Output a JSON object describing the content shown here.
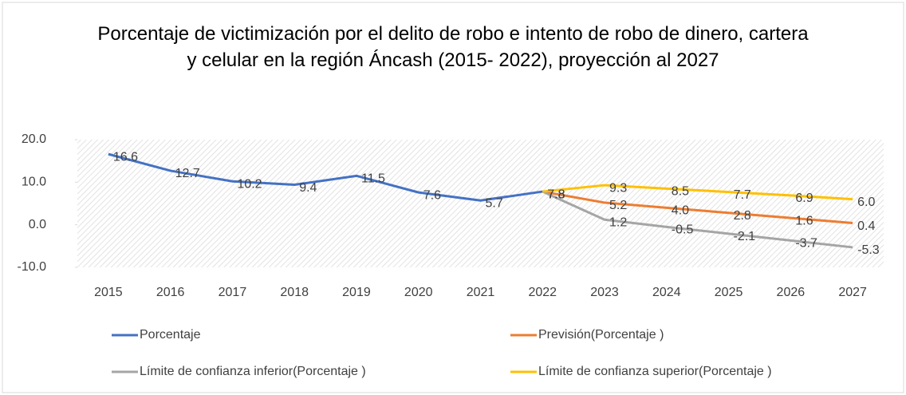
{
  "chart_data": {
    "type": "line",
    "title": "Porcentaje de victimización por el delito de robo e intento de robo de dinero, cartera y celular en la región Áncash (2015- 2022), proyección al 2027",
    "categories": [
      "2015",
      "2016",
      "2017",
      "2018",
      "2019",
      "2020",
      "2021",
      "2022",
      "2023",
      "2024",
      "2025",
      "2026",
      "2027"
    ],
    "series": [
      {
        "name": "Porcentaje",
        "color": "#4472c4",
        "values": [
          16.6,
          12.7,
          10.2,
          9.4,
          11.5,
          7.6,
          5.7,
          7.8,
          null,
          null,
          null,
          null,
          null
        ],
        "value_labels": [
          "16.6",
          "12.7",
          "10.2",
          "9.4",
          "11.5",
          "7.6",
          "5.7",
          "7.8",
          null,
          null,
          null,
          null,
          null
        ]
      },
      {
        "name": "Previsión(Porcentaje )",
        "color": "#ed7d31",
        "values": [
          null,
          null,
          null,
          null,
          null,
          null,
          null,
          7.8,
          5.2,
          4,
          2.8,
          1.6,
          0.4
        ],
        "value_labels": [
          null,
          null,
          null,
          null,
          null,
          null,
          null,
          "7.8",
          "5.2",
          "4.0",
          "2.8",
          "1.6",
          "0.4"
        ]
      },
      {
        "name": "Límite de confianza inferior(Porcentaje )",
        "color": "#a5a5a5",
        "values": [
          null,
          null,
          null,
          null,
          null,
          null,
          null,
          7.8,
          1.2,
          -0.5,
          -2.1,
          -3.7,
          -5.3
        ],
        "value_labels": [
          null,
          null,
          null,
          null,
          null,
          null,
          null,
          "7.8",
          "1.2",
          "-0.5",
          "-2.1",
          "-3.7",
          "-5.3"
        ]
      },
      {
        "name": "Límite de confianza superior(Porcentaje )",
        "color": "#ffc000",
        "values": [
          null,
          null,
          null,
          null,
          null,
          null,
          null,
          7.8,
          9.3,
          8.5,
          7.7,
          6.9,
          6
        ],
        "value_labels": [
          null,
          null,
          null,
          null,
          null,
          null,
          null,
          "7.8",
          "9.3",
          "8.5",
          "7.7",
          "6.9",
          "6.0"
        ]
      }
    ],
    "ylim": [
      -10,
      20
    ],
    "yticks": [
      {
        "value": -10,
        "label": "-10.0"
      },
      {
        "value": 0,
        "label": "0.0"
      },
      {
        "value": 10,
        "label": "10.0"
      },
      {
        "value": 20,
        "label": "20.0"
      }
    ],
    "legend": "bottom"
  }
}
